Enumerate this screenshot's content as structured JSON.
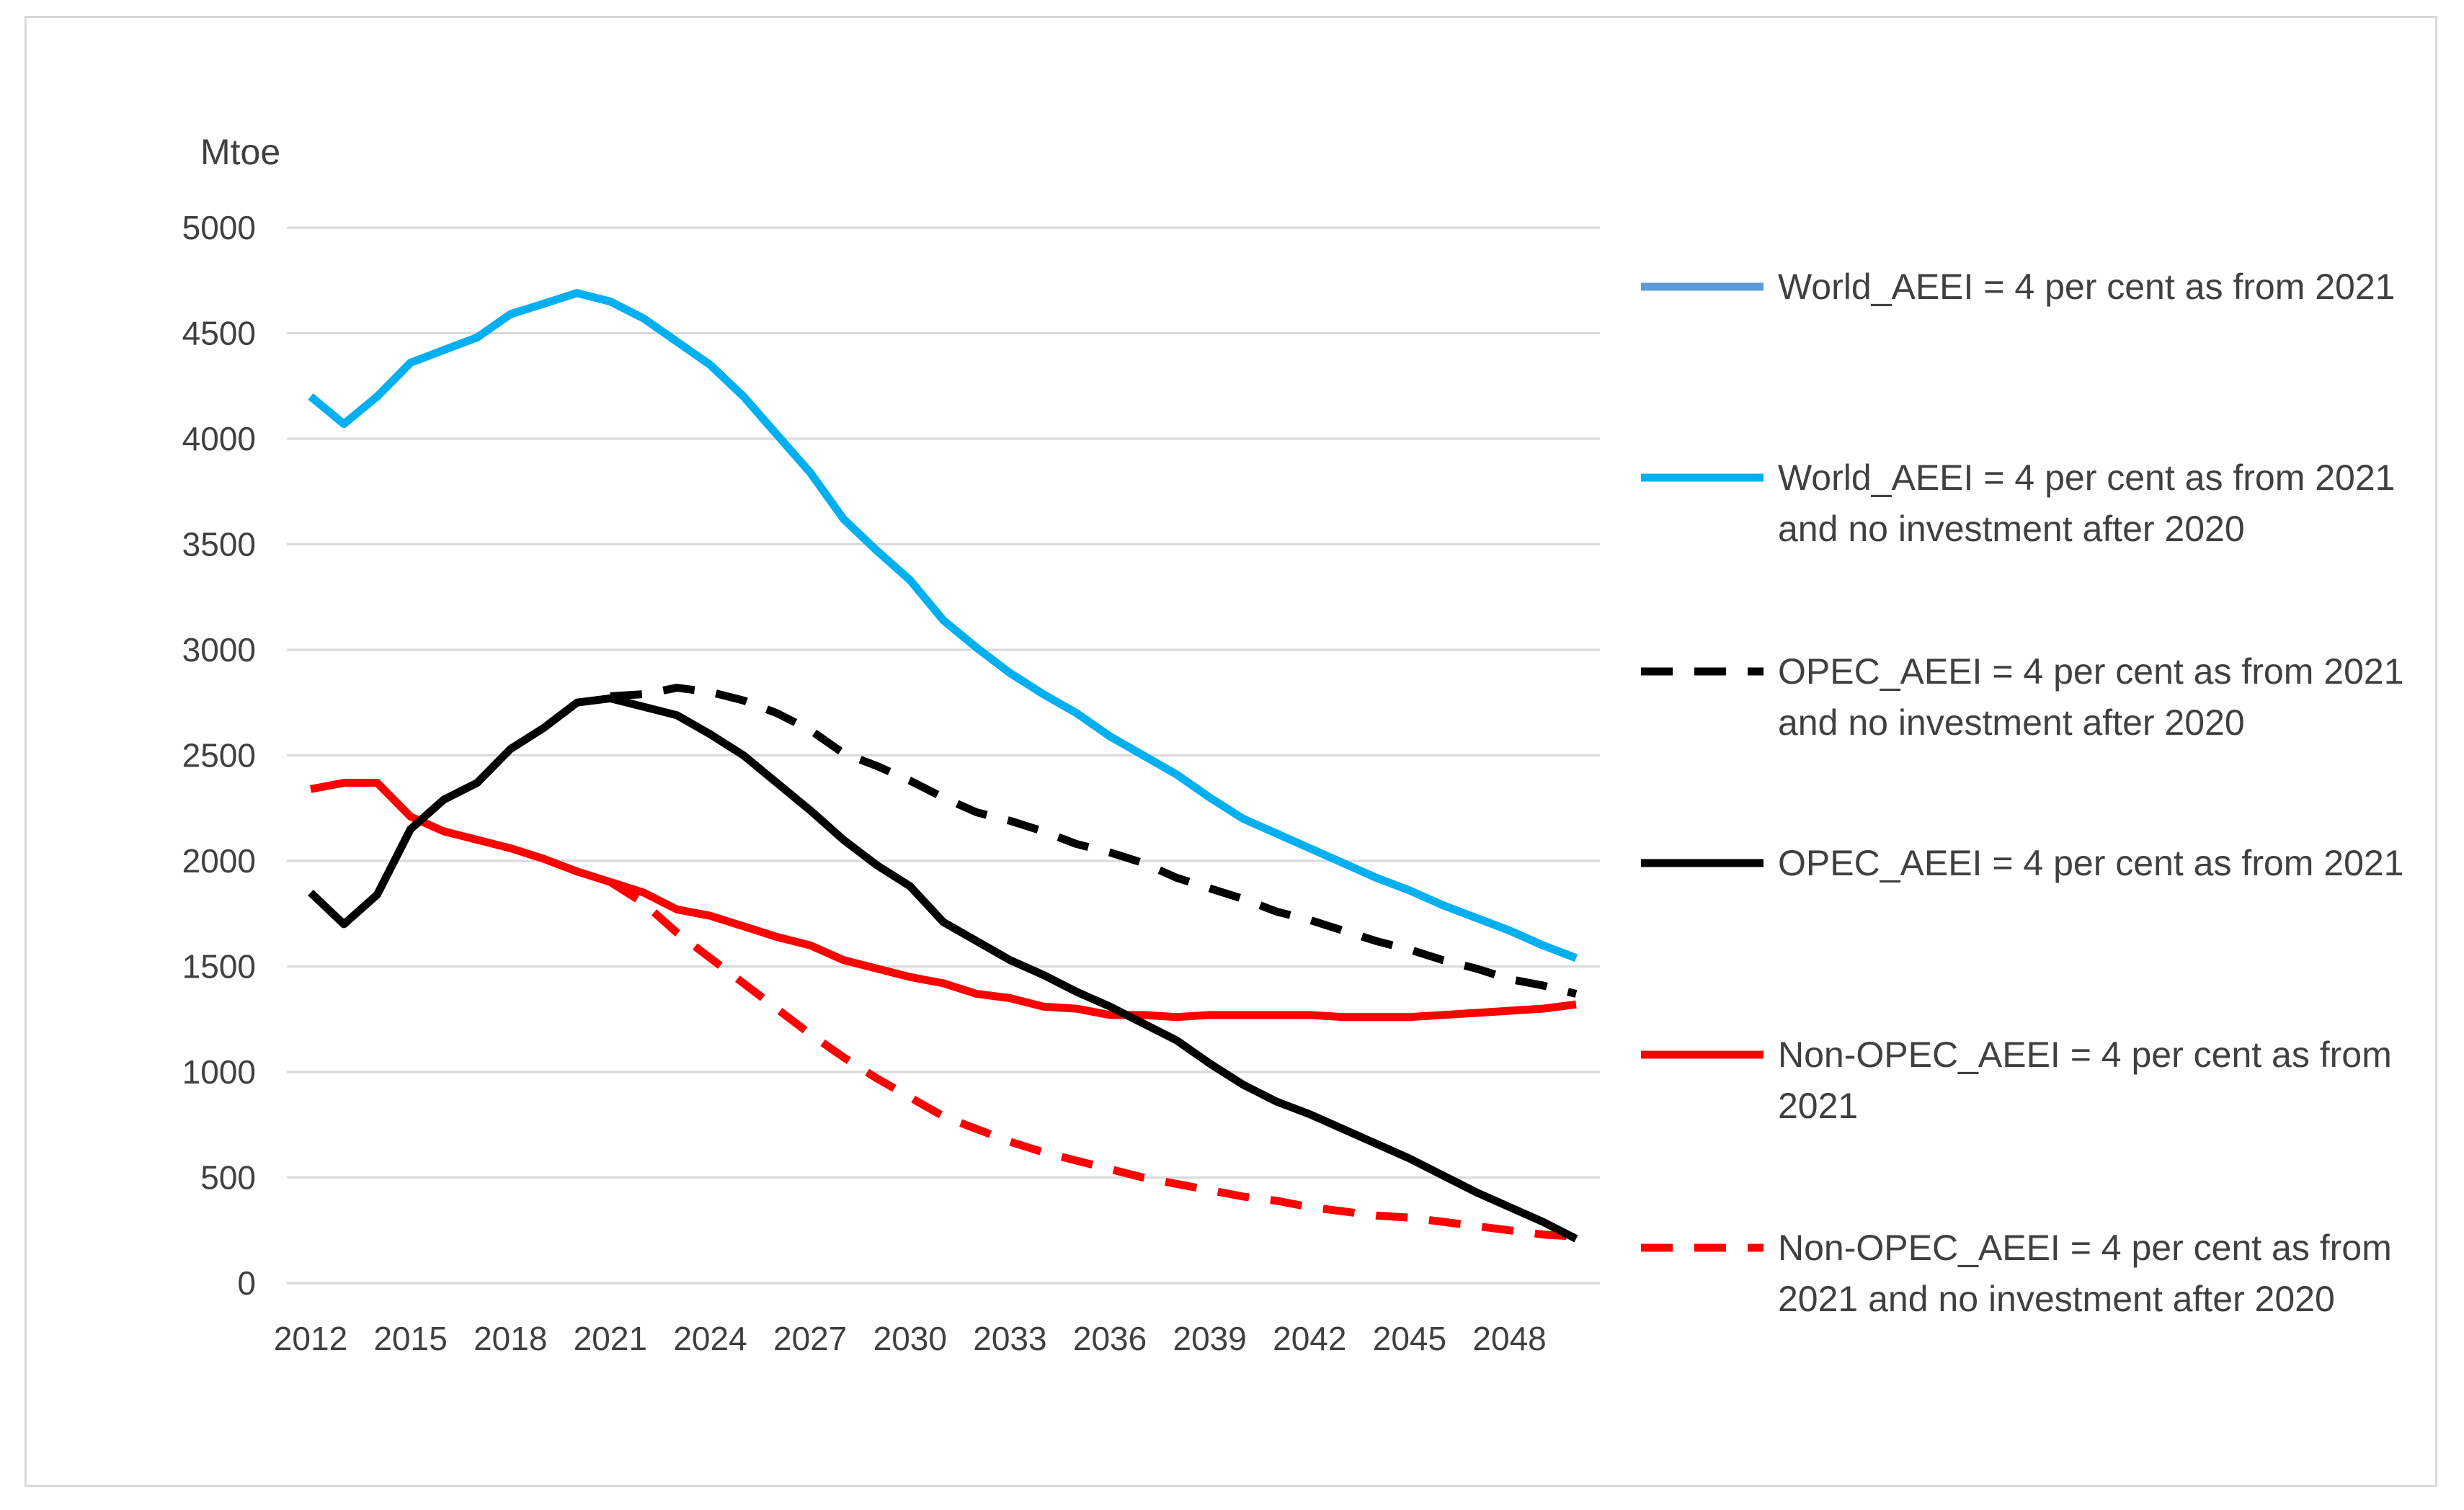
{
  "chart_data": {
    "type": "line",
    "title": "",
    "ylabel": "Mtoe",
    "xlabel": "",
    "ylim": [
      0,
      5000
    ],
    "yticks": [
      0,
      500,
      1000,
      1500,
      2000,
      2500,
      3000,
      3500,
      4000,
      4500,
      5000
    ],
    "xticks": [
      "2012",
      "2015",
      "2018",
      "2021",
      "2024",
      "2027",
      "2030",
      "2033",
      "2036",
      "2039",
      "2042",
      "2045",
      "2048"
    ],
    "x": [
      2012,
      2013,
      2014,
      2015,
      2016,
      2017,
      2018,
      2019,
      2020,
      2021,
      2022,
      2023,
      2024,
      2025,
      2026,
      2027,
      2028,
      2029,
      2030,
      2031,
      2032,
      2033,
      2034,
      2035,
      2036,
      2037,
      2038,
      2039,
      2040,
      2041,
      2042,
      2043,
      2044,
      2045,
      2046,
      2047,
      2048,
      2049,
      2050
    ],
    "grid": true,
    "legend_position": "right",
    "series": [
      {
        "name": "World_AEEI = 4 per cent as from 2021",
        "color": "#5b9bd5",
        "dash": "solid",
        "values": [
          4200,
          4070,
          4200,
          4360,
          4420,
          4480,
          4590,
          4640,
          4690,
          4650,
          4570,
          4460,
          4350,
          4200,
          4020,
          3840,
          3620,
          3470,
          3330,
          3140,
          3010,
          2890,
          2790,
          2700,
          2590,
          2500,
          2410,
          2300,
          2200,
          2130,
          2060,
          1990,
          1920,
          1860,
          1790,
          1730,
          1670,
          1600,
          1540
        ]
      },
      {
        "name": "World_AEEI = 4 per cent as from 2021 and no investment after 2020",
        "color": "#00b0f0",
        "dash": "solid",
        "values": [
          4200,
          4070,
          4200,
          4360,
          4420,
          4480,
          4590,
          4640,
          4690,
          4650,
          4570,
          4460,
          4350,
          4200,
          4020,
          3840,
          3620,
          3470,
          3330,
          3140,
          3010,
          2890,
          2790,
          2700,
          2590,
          2500,
          2410,
          2300,
          2200,
          2130,
          2060,
          1990,
          1920,
          1860,
          1790,
          1730,
          1670,
          1600,
          1540
        ]
      },
      {
        "name": "OPEC_AEEI = 4 per cent as from 2021 and no investment after 2020",
        "color": "#000000",
        "dash": "dashed",
        "values": [
          null,
          null,
          null,
          null,
          null,
          null,
          null,
          null,
          null,
          2780,
          2790,
          2820,
          2800,
          2760,
          2700,
          2620,
          2510,
          2450,
          2380,
          2300,
          2230,
          2190,
          2140,
          2080,
          2040,
          1990,
          1920,
          1870,
          1820,
          1760,
          1720,
          1670,
          1620,
          1580,
          1530,
          1490,
          1440,
          1410,
          1370
        ]
      },
      {
        "name": "OPEC_AEEI = 4 per cent as from 2021",
        "color": "#000000",
        "dash": "solid",
        "values": [
          1850,
          1700,
          1840,
          2150,
          2290,
          2370,
          2530,
          2630,
          2750,
          2770,
          2730,
          2690,
          2600,
          2500,
          2370,
          2240,
          2100,
          1980,
          1880,
          1710,
          1620,
          1530,
          1460,
          1380,
          1310,
          1230,
          1150,
          1040,
          940,
          860,
          800,
          730,
          660,
          590,
          510,
          430,
          360,
          290,
          210
        ]
      },
      {
        "name": "Non-OPEC_AEEI = 4 per cent as from 2021",
        "color": "#ff0000",
        "dash": "solid",
        "values": [
          2340,
          2370,
          2370,
          2210,
          2140,
          2100,
          2060,
          2010,
          1950,
          1900,
          1850,
          1770,
          1740,
          1690,
          1640,
          1600,
          1530,
          1490,
          1450,
          1420,
          1370,
          1350,
          1310,
          1300,
          1270,
          1270,
          1260,
          1270,
          1270,
          1270,
          1270,
          1260,
          1260,
          1260,
          1270,
          1280,
          1290,
          1300,
          1320
        ]
      },
      {
        "name": "Non-OPEC_AEEI = 4 per cent as from 2021 and no investment after 2020",
        "color": "#ff0000",
        "dash": "dashed",
        "values": [
          null,
          null,
          null,
          null,
          null,
          null,
          null,
          null,
          null,
          1900,
          1800,
          1660,
          1540,
          1420,
          1300,
          1180,
          1070,
          970,
          880,
          790,
          730,
          670,
          620,
          580,
          540,
          500,
          470,
          440,
          410,
          390,
          360,
          340,
          320,
          310,
          290,
          270,
          250,
          230,
          220
        ]
      }
    ]
  }
}
